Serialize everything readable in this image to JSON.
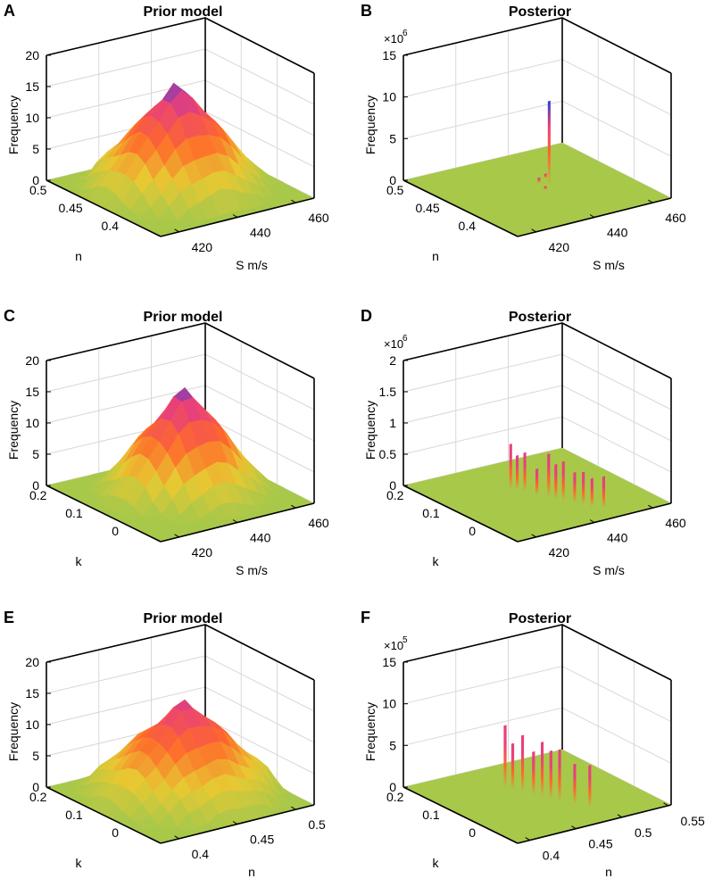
{
  "chart_data": [
    {
      "type": "surface3d",
      "panel_label": "A",
      "title": "Prior model",
      "zlabel": "Frequency",
      "xlabel": "S m/s",
      "ylabel": "n",
      "zlim": [
        0,
        20
      ],
      "zticks": [
        "0",
        "5",
        "10",
        "15",
        "20"
      ],
      "xticks": [
        "420",
        "440",
        "460"
      ],
      "yticks": [
        "0.5",
        "0.45",
        "0.4"
      ],
      "multiplier": "",
      "peak_value": 17,
      "peak_position": [
        0.45,
        0.5
      ],
      "spread": 0.22,
      "spikes": []
    },
    {
      "type": "surface3d",
      "panel_label": "B",
      "title": "Posterior",
      "zlabel": "Frequency",
      "xlabel": "S m/s",
      "ylabel": "n",
      "zlim": [
        0,
        15
      ],
      "zticks": [
        "0",
        "5",
        "10",
        "15"
      ],
      "xticks": [
        "420",
        "440",
        "460"
      ],
      "yticks": [
        "0.5",
        "0.45",
        "0.4"
      ],
      "multiplier": "×10",
      "multiplier_exp": "6",
      "peak_value": 0,
      "peak_position": [
        0.5,
        0.5
      ],
      "spread": 0.2,
      "spikes": [
        {
          "u": 0.47,
          "v": 0.58,
          "h": 10
        },
        {
          "u": 0.42,
          "v": 0.55,
          "h": 0.6
        },
        {
          "u": 0.38,
          "v": 0.62,
          "h": 0.5
        },
        {
          "u": 0.52,
          "v": 0.52,
          "h": 0.4
        }
      ]
    },
    {
      "type": "surface3d",
      "panel_label": "C",
      "title": "Prior model",
      "zlabel": "Frequency",
      "xlabel": "S m/s",
      "ylabel": "k",
      "zlim": [
        0,
        20
      ],
      "zticks": [
        "0",
        "5",
        "10",
        "15",
        "20"
      ],
      "xticks": [
        "420",
        "440",
        "460"
      ],
      "yticks": [
        "0.2",
        "0.1",
        "0"
      ],
      "multiplier": "",
      "peak_value": 17,
      "peak_position": [
        0.45,
        0.55
      ],
      "spread": 0.2,
      "spikes": []
    },
    {
      "type": "surface3d",
      "panel_label": "D",
      "title": "Posterior",
      "zlabel": "Frequency",
      "xlabel": "S m/s",
      "ylabel": "k",
      "zlim": [
        0,
        2
      ],
      "zticks": [
        "0",
        "0.5",
        "1",
        "1.5",
        "2"
      ],
      "xticks": [
        "420",
        "440",
        "460"
      ],
      "yticks": [
        "0.2",
        "0.1",
        "0"
      ],
      "multiplier": "×10",
      "multiplier_exp": "6",
      "peak_value": 0,
      "peak_position": [
        0.5,
        0.5
      ],
      "spread": 0.2,
      "spikes": [
        {
          "u": 0.35,
          "v": 0.42,
          "h": 0.72
        },
        {
          "u": 0.38,
          "v": 0.44,
          "h": 0.55
        },
        {
          "u": 0.42,
          "v": 0.46,
          "h": 0.62
        },
        {
          "u": 0.5,
          "v": 0.48,
          "h": 0.42
        },
        {
          "u": 0.55,
          "v": 0.52,
          "h": 0.68
        },
        {
          "u": 0.6,
          "v": 0.53,
          "h": 0.55
        },
        {
          "u": 0.64,
          "v": 0.55,
          "h": 0.62
        },
        {
          "u": 0.7,
          "v": 0.58,
          "h": 0.48
        },
        {
          "u": 0.75,
          "v": 0.6,
          "h": 0.52
        },
        {
          "u": 0.8,
          "v": 0.62,
          "h": 0.45
        },
        {
          "u": 0.85,
          "v": 0.66,
          "h": 0.5
        }
      ]
    },
    {
      "type": "surface3d",
      "panel_label": "E",
      "title": "Prior model",
      "zlabel": "Frequency",
      "xlabel": "n",
      "ylabel": "k",
      "zlim": [
        0,
        20
      ],
      "zticks": [
        "0",
        "5",
        "10",
        "15",
        "20"
      ],
      "xticks": [
        "0.4",
        "0.45",
        "0.5"
      ],
      "yticks": [
        "0.2",
        "0.1",
        "0"
      ],
      "multiplier": "",
      "peak_value": 15,
      "peak_position": [
        0.45,
        0.55
      ],
      "spread": 0.24,
      "spikes": []
    },
    {
      "type": "surface3d",
      "panel_label": "F",
      "title": "Posterior",
      "zlabel": "Frequency",
      "xlabel": "n",
      "ylabel": "k",
      "zlim": [
        0,
        15
      ],
      "zticks": [
        "0",
        "5",
        "10",
        "15"
      ],
      "xticks": [
        "0.4",
        "0.45",
        "0.5",
        "0.55"
      ],
      "yticks": [
        "0.2",
        "0.1",
        "0"
      ],
      "multiplier": "×10",
      "multiplier_exp": "5",
      "peak_value": 0,
      "peak_position": [
        0.5,
        0.5
      ],
      "spread": 0.2,
      "spikes": [
        {
          "u": 0.3,
          "v": 0.42,
          "h": 7.5
        },
        {
          "u": 0.34,
          "v": 0.44,
          "h": 5.5
        },
        {
          "u": 0.4,
          "v": 0.46,
          "h": 6.8
        },
        {
          "u": 0.47,
          "v": 0.48,
          "h": 5.2
        },
        {
          "u": 0.52,
          "v": 0.5,
          "h": 6.6
        },
        {
          "u": 0.57,
          "v": 0.52,
          "h": 5.8
        },
        {
          "u": 0.62,
          "v": 0.54,
          "h": 6.2
        },
        {
          "u": 0.7,
          "v": 0.58,
          "h": 4.8
        },
        {
          "u": 0.78,
          "v": 0.62,
          "h": 5.0
        }
      ]
    }
  ]
}
